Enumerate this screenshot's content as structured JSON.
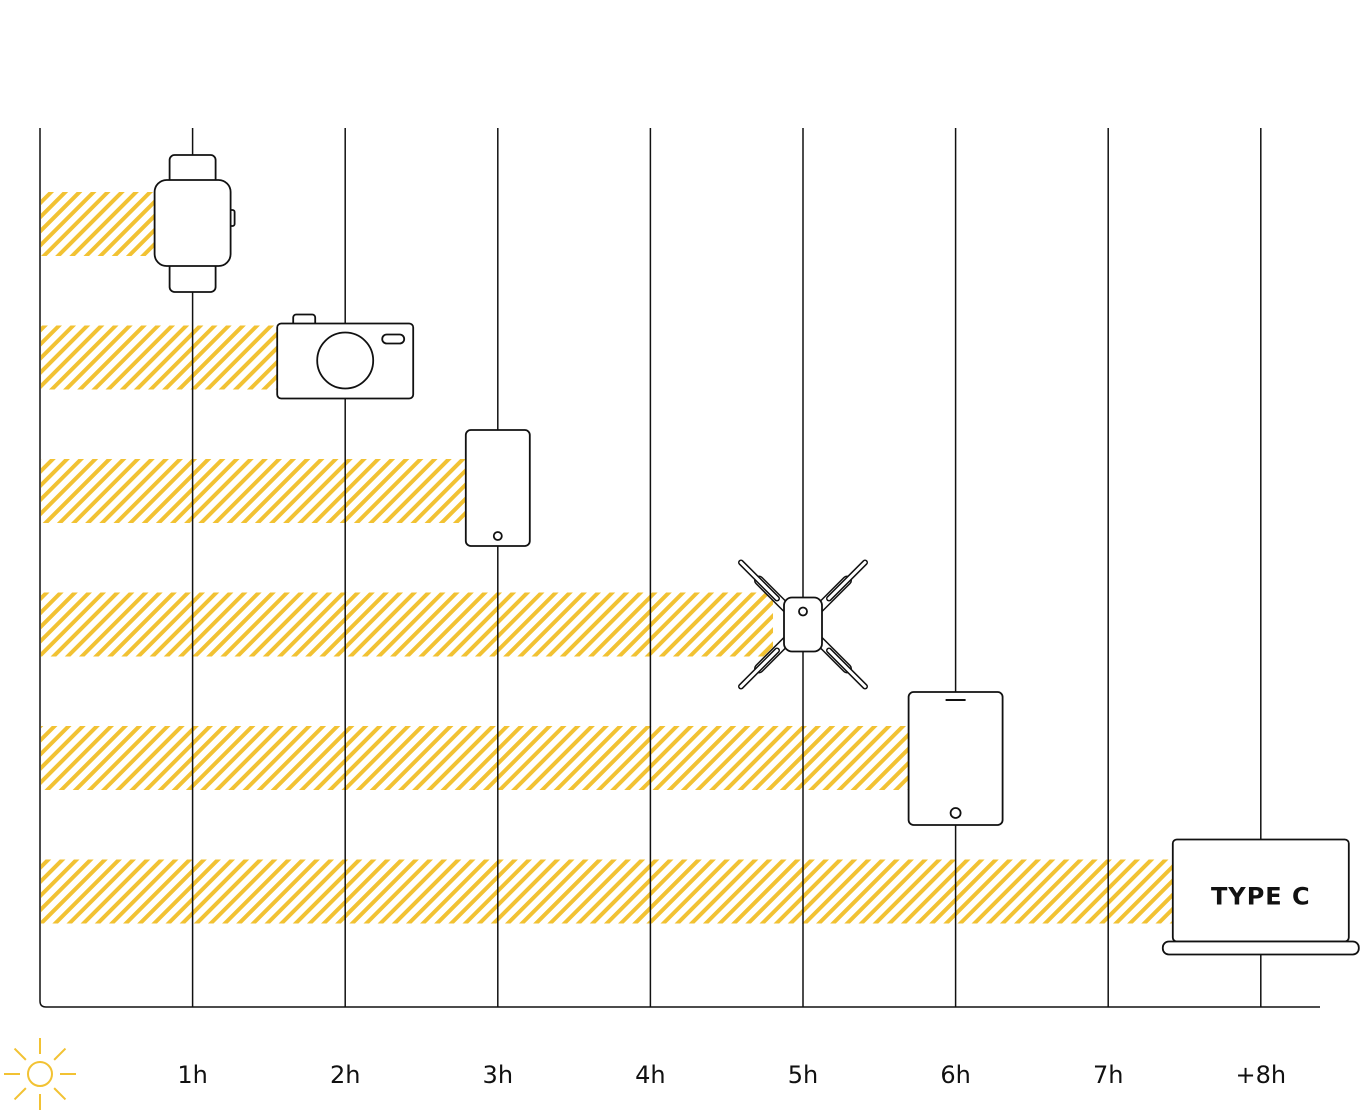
{
  "chart_data": {
    "type": "bar",
    "orientation": "horizontal",
    "x_categories": [
      "1h",
      "2h",
      "3h",
      "4h",
      "5h",
      "6h",
      "7h",
      "+8h"
    ],
    "xlim": [
      0,
      8
    ],
    "grid": true,
    "rows": [
      {
        "device": "smartwatch-icon",
        "value": 1
      },
      {
        "device": "camera-icon",
        "value": 2
      },
      {
        "device": "smartphone-icon",
        "value": 3
      },
      {
        "device": "drone-icon",
        "value": 5
      },
      {
        "device": "tablet-icon",
        "value": 6
      },
      {
        "device": "laptop-icon",
        "value": 8,
        "label": "TYPE C"
      }
    ],
    "colors": {
      "bar": "#F2C233",
      "line": "#111111",
      "sun": "#F2C233"
    },
    "axis_icon": "sun-icon"
  }
}
